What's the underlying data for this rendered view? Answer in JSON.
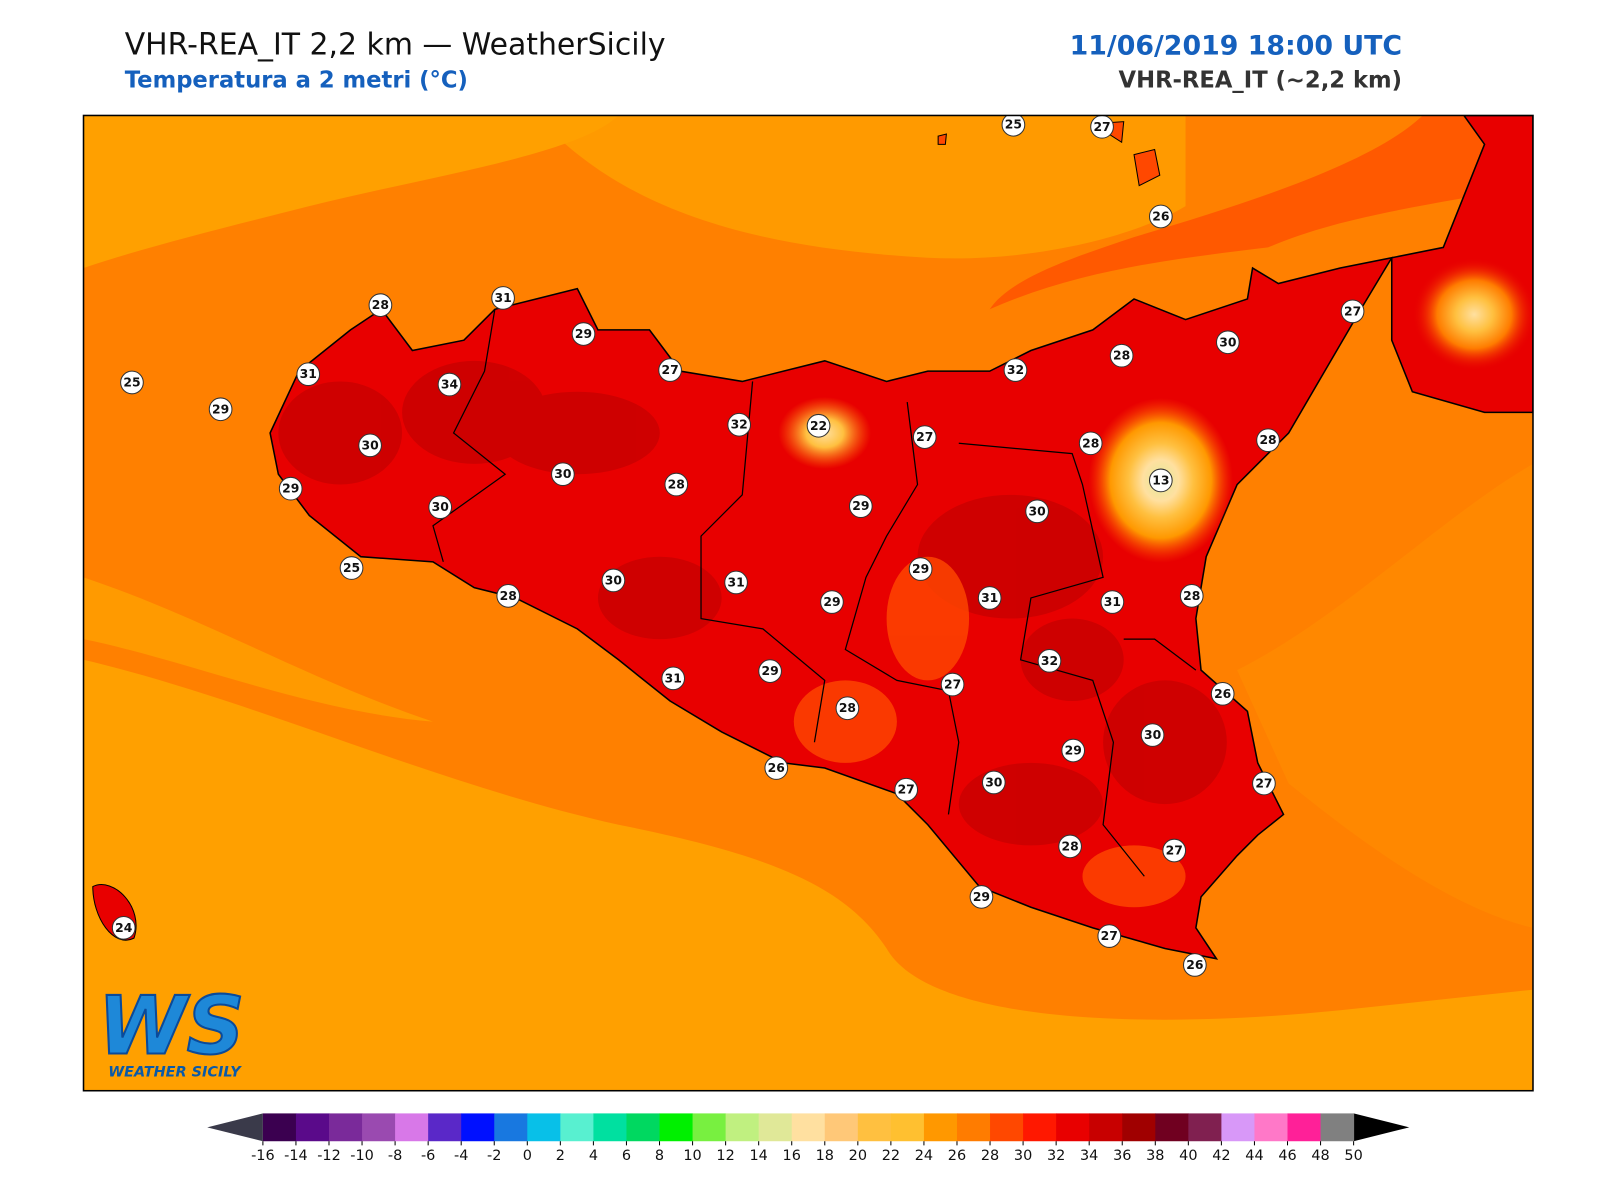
{
  "header": {
    "title": "VHR-REA_IT 2,2 km — WeatherSicily",
    "subtitle": "Temperatura a 2 metri (°C)",
    "datetime": "11/06/2019 18:00 UTC",
    "model": "VHR-REA_IT (~2,2 km)"
  },
  "logo": {
    "mark": "WS",
    "text": "WEATHER SICILY"
  },
  "stations": [
    25,
    27,
    26,
    28,
    31,
    29,
    27,
    30,
    25,
    31,
    34,
    27,
    32,
    28,
    29,
    32,
    22,
    27,
    28,
    28,
    30,
    13,
    30,
    28,
    29,
    30,
    29,
    30,
    25,
    29,
    30,
    31,
    28,
    29,
    31,
    31,
    28,
    32,
    27,
    26,
    31,
    29,
    28,
    30,
    29,
    27,
    26,
    27,
    30,
    28,
    27,
    29,
    27,
    26,
    24
  ],
  "colorbar": {
    "ticks": [
      -16,
      -14,
      -12,
      -10,
      -8,
      -6,
      -4,
      -2,
      0,
      2,
      4,
      6,
      8,
      10,
      12,
      14,
      16,
      18,
      20,
      22,
      24,
      26,
      28,
      30,
      32,
      34,
      36,
      38,
      40,
      42,
      44,
      46,
      48,
      50
    ],
    "colors": [
      "#3b0050",
      "#5a0a8a",
      "#7a2a9a",
      "#9a4ab0",
      "#d878e8",
      "#5a28c8",
      "#0010ff",
      "#1878e0",
      "#08c0e8",
      "#58f0d0",
      "#00e0a0",
      "#00d860",
      "#00f000",
      "#78f040",
      "#c0f080",
      "#e0e898",
      "#ffe0a0",
      "#ffc878",
      "#ffc040",
      "#ffc030",
      "#ff9800",
      "#ff7c00",
      "#ff4800",
      "#ff1800",
      "#e80000",
      "#c80000",
      "#a00000",
      "#700020",
      "#802050",
      "#d898f8",
      "#ff78c8",
      "#ff2098",
      "#808080",
      "#383838"
    ],
    "under": "#3a3a4a",
    "over": "#000000"
  }
}
